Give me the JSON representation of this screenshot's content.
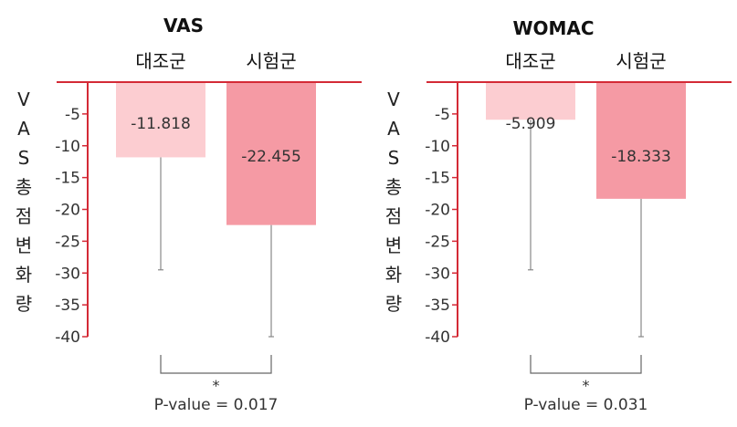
{
  "colors": {
    "axis": "#d42a36",
    "control_bar": "#fccdd1",
    "test_bar": "#f59aa4",
    "error_bar": "#888888",
    "bracket": "#666666"
  },
  "chart_data": [
    {
      "type": "bar",
      "title": "VAS",
      "ylabel": "VAS 총점변화량",
      "categories": [
        "대조군",
        "시험군"
      ],
      "values": [
        -11.818,
        -22.455
      ],
      "value_labels": [
        "-11.818",
        "-22.455"
      ],
      "error_low": [
        -29.5,
        -40
      ],
      "ylim": [
        0,
        -40
      ],
      "ticks": [
        -5,
        -10,
        -15,
        -20,
        -25,
        -30,
        -35,
        -40
      ],
      "tick_labels": [
        "-5",
        "-10",
        "-15",
        "-20",
        "-25",
        "-30",
        "-35",
        "-40"
      ],
      "significance": {
        "marker": "*",
        "label": "P-value = 0.017"
      }
    },
    {
      "type": "bar",
      "title": "WOMAC",
      "ylabel": "VAS 총점변화량",
      "categories": [
        "대조군",
        "시험군"
      ],
      "values": [
        -5.909,
        -18.333
      ],
      "value_labels": [
        "-5.909",
        "-18.333"
      ],
      "error_low": [
        -29.5,
        -40
      ],
      "ylim": [
        0,
        -40
      ],
      "ticks": [
        -5,
        -10,
        -15,
        -20,
        -25,
        -30,
        -35,
        -40
      ],
      "tick_labels": [
        "-5",
        "-10",
        "-15",
        "-20",
        "-25",
        "-30",
        "-35",
        "-40"
      ],
      "significance": {
        "marker": "*",
        "label": "P-value = 0.031"
      }
    }
  ]
}
